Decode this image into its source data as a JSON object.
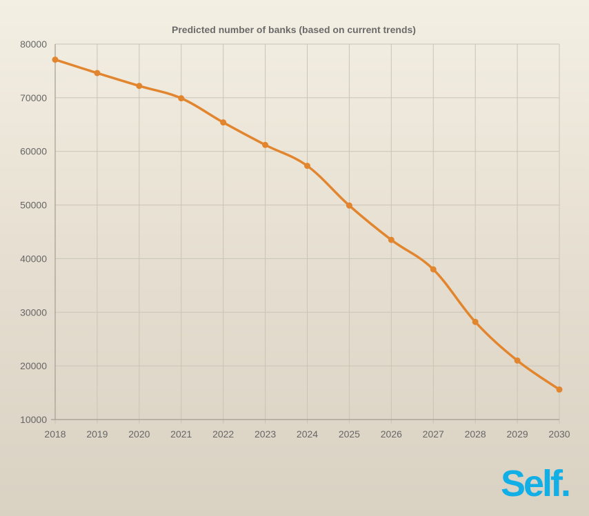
{
  "chart_data": {
    "type": "line",
    "title": "Predicted number of banks (based on current trends)",
    "xlabel": "",
    "ylabel": "",
    "x": [
      "2018",
      "2019",
      "2020",
      "2021",
      "2022",
      "2023",
      "2024",
      "2025",
      "2026",
      "2027",
      "2028",
      "2029",
      "2030"
    ],
    "series": [
      {
        "values": [
          77100,
          74600,
          72200,
          69900,
          65400,
          61200,
          57300,
          49900,
          43500,
          38000,
          28200,
          21000,
          15600
        ],
        "color": "#e2852f"
      }
    ],
    "ylim": [
      10000,
      80000
    ],
    "yticks": [
      "80000",
      "70000",
      "60000",
      "50000",
      "40000",
      "30000",
      "20000",
      "10000"
    ],
    "grid": true,
    "legend": "none",
    "smooth": true
  },
  "logo": {
    "text": "Self.",
    "color": "#12aee6"
  }
}
